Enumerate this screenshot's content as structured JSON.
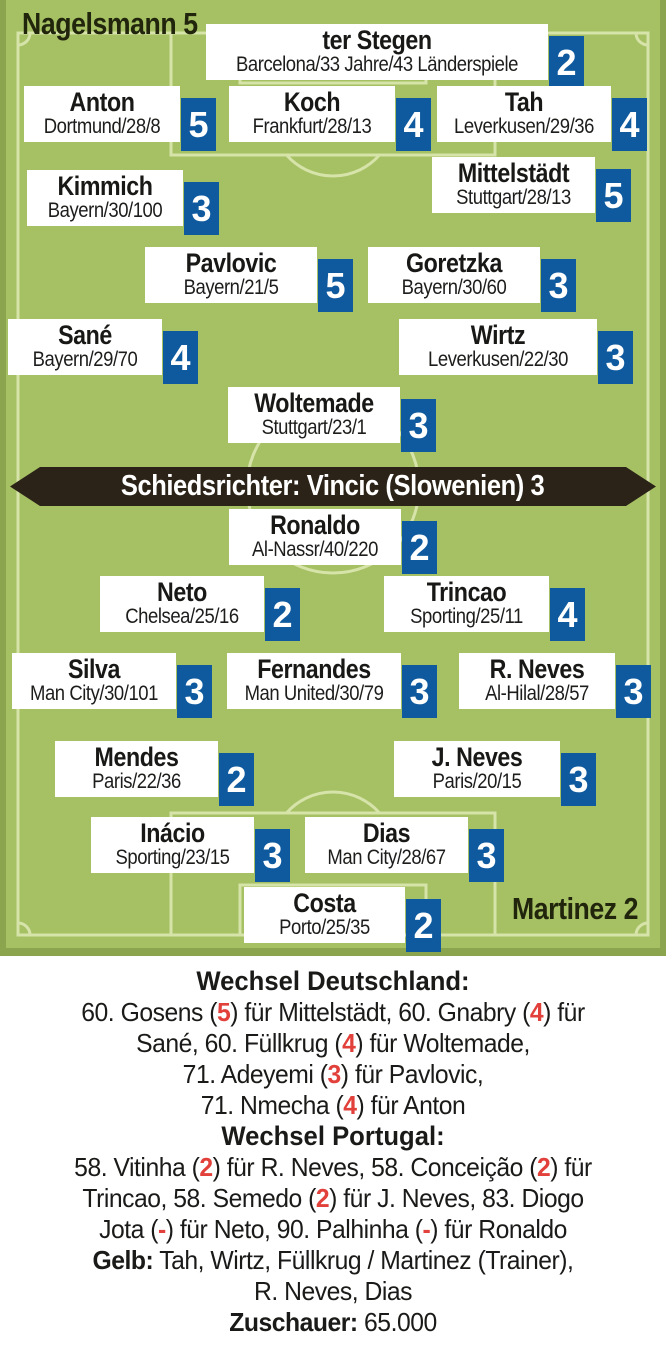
{
  "meta": {
    "home_coach": "Nagelsmann 5",
    "away_coach": "Martinez 2",
    "referee_banner": "Schiedsrichter: Vincic (Slowenien) 3"
  },
  "colors": {
    "pitch_green": "#a6c064",
    "pitch_edge_green": "#8ba54e",
    "pitch_line": "#d6e3a9",
    "rating_blue": "#0f5a9e",
    "banner_dark": "#2b2317",
    "accent_red": "#e2403a",
    "text_dark": "#1a1a18"
  },
  "players": [
    {
      "team": "Deutschland",
      "name": "ter Stegen",
      "info": "Barcelona/33 Jahre/43 Länderspiele",
      "rating": "2"
    },
    {
      "team": "Deutschland",
      "name": "Anton",
      "info": "Dortmund/28/8",
      "rating": "5"
    },
    {
      "team": "Deutschland",
      "name": "Koch",
      "info": "Frankfurt/28/13",
      "rating": "4"
    },
    {
      "team": "Deutschland",
      "name": "Tah",
      "info": "Leverkusen/29/36",
      "rating": "4"
    },
    {
      "team": "Deutschland",
      "name": "Kimmich",
      "info": "Bayern/30/100",
      "rating": "3"
    },
    {
      "team": "Deutschland",
      "name": "Mittelstädt",
      "info": "Stuttgart/28/13",
      "rating": "5"
    },
    {
      "team": "Deutschland",
      "name": "Pavlovic",
      "info": "Bayern/21/5",
      "rating": "5"
    },
    {
      "team": "Deutschland",
      "name": "Goretzka",
      "info": "Bayern/30/60",
      "rating": "3"
    },
    {
      "team": "Deutschland",
      "name": "Sané",
      "info": "Bayern/29/70",
      "rating": "4"
    },
    {
      "team": "Deutschland",
      "name": "Wirtz",
      "info": "Leverkusen/22/30",
      "rating": "3"
    },
    {
      "team": "Deutschland",
      "name": "Woltemade",
      "info": "Stuttgart/23/1",
      "rating": "3"
    },
    {
      "team": "Portugal",
      "name": "Ronaldo",
      "info": "Al-Nassr/40/220",
      "rating": "2"
    },
    {
      "team": "Portugal",
      "name": "Neto",
      "info": "Chelsea/25/16",
      "rating": "2"
    },
    {
      "team": "Portugal",
      "name": "Trincao",
      "info": "Sporting/25/11",
      "rating": "4"
    },
    {
      "team": "Portugal",
      "name": "Silva",
      "info": "Man City/30/101",
      "rating": "3"
    },
    {
      "team": "Portugal",
      "name": "Fernandes",
      "info": "Man United/30/79",
      "rating": "3"
    },
    {
      "team": "Portugal",
      "name": "R. Neves",
      "info": "Al-Hilal/28/57",
      "rating": "3"
    },
    {
      "team": "Portugal",
      "name": "Mendes",
      "info": "Paris/22/36",
      "rating": "2"
    },
    {
      "team": "Portugal",
      "name": "J. Neves",
      "info": "Paris/20/15",
      "rating": "3"
    },
    {
      "team": "Portugal",
      "name": "Inácio",
      "info": "Sporting/23/15",
      "rating": "3"
    },
    {
      "team": "Portugal",
      "name": "Dias",
      "info": "Man City/28/67",
      "rating": "3"
    },
    {
      "team": "Portugal",
      "name": "Costa",
      "info": "Porto/25/35",
      "rating": "2"
    }
  ],
  "notes_lines": [
    {
      "style": "heading",
      "text": "Wechsel Deutschland:"
    },
    {
      "style": "body",
      "text": "60. Gosens (5) für Mittelstädt, 60. Gnabry (4) für"
    },
    {
      "style": "body",
      "text": "Sané, 60. Füllkrug (4) für Woltemade,"
    },
    {
      "style": "body",
      "text": "71. Adeyemi (3) für Pavlovic,"
    },
    {
      "style": "body",
      "text": "71. Nmecha (4) für Anton"
    },
    {
      "style": "heading",
      "text": "Wechsel Portugal:"
    },
    {
      "style": "body",
      "text": "58. Vitinha (2) für R. Neves, 58. Conceição (2) für"
    },
    {
      "style": "body",
      "text": "Trincao, 58. Semedo (2) für J. Neves, 83. Diogo"
    },
    {
      "style": "body",
      "text": "Jota (-) für Neto,  90. Palhinha (-) für Ronaldo"
    },
    {
      "style": "body",
      "bold_prefix": "Gelb:",
      "text": " Tah, Wirtz, Füllkrug / Martinez (Trainer),"
    },
    {
      "style": "body",
      "text": "R. Neves, Dias"
    },
    {
      "style": "body",
      "bold_prefix": "Zuschauer:",
      "text": " 65.000"
    }
  ]
}
